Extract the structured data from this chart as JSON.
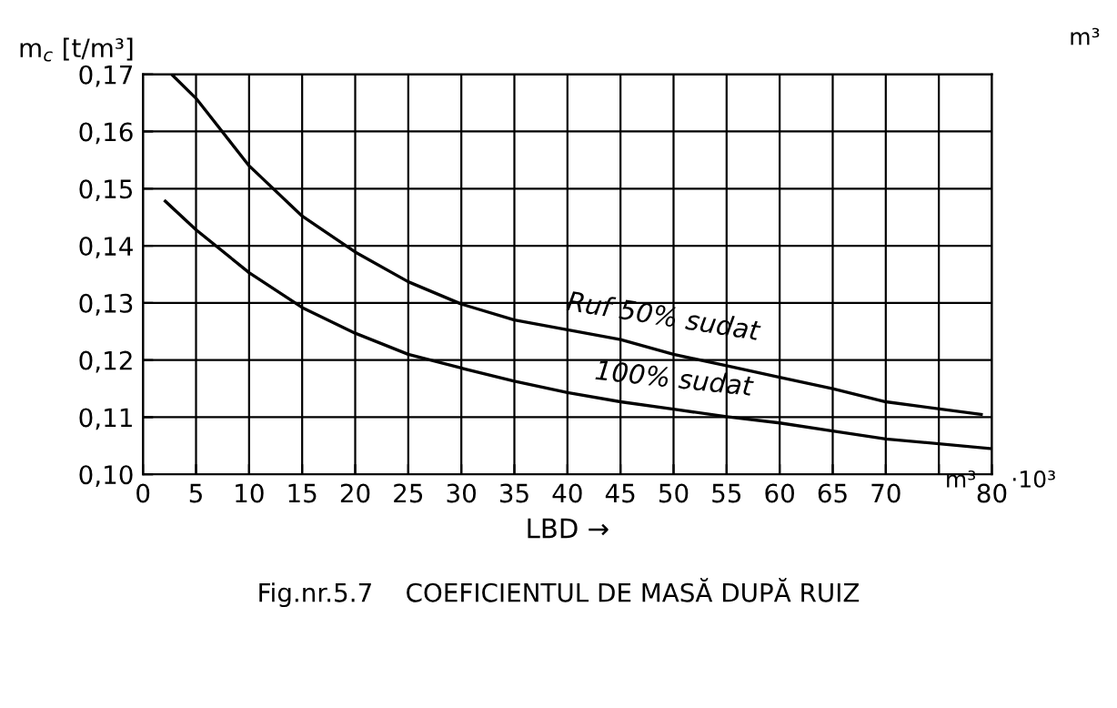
{
  "chart_data": {
    "type": "line",
    "title": "Fig.nr.5.7    COEFICIENTUL DE MASĂ DUPĂ RUIZ",
    "xlabel": "LBD →",
    "ylabel": "m$_{c}$ [t/m³]",
    "annotations": [
      "m³",
      "m³",
      "·10³"
    ],
    "series": [
      {
        "name": "Ruf 50% sudat",
        "color": "#000000",
        "x": [
          2.7,
          5,
          10,
          15,
          20,
          25,
          30,
          35,
          40,
          45,
          50,
          55,
          60,
          65,
          70,
          79
        ],
        "values": [
          0.17,
          0.1658,
          0.154,
          0.1452,
          0.1389,
          0.1337,
          0.1298,
          0.127,
          0.1253,
          0.1236,
          0.121,
          0.119,
          0.117,
          0.115,
          0.1127,
          0.1105
        ]
      },
      {
        "name": "100% sudat",
        "color": "#000000",
        "x": [
          2.1,
          5,
          10,
          15,
          20,
          25,
          30,
          35,
          40,
          45,
          50,
          55,
          60,
          65,
          70,
          80
        ],
        "values": [
          0.1478,
          0.1428,
          0.1353,
          0.1292,
          0.1247,
          0.121,
          0.1186,
          0.1163,
          0.1143,
          0.1127,
          0.1114,
          0.1101,
          0.109,
          0.1076,
          0.1062,
          0.1045
        ]
      }
    ],
    "xlim": [
      0,
      80
    ],
    "xticks": [
      0,
      5,
      10,
      15,
      20,
      25,
      30,
      35,
      40,
      45,
      50,
      55,
      60,
      65,
      70,
      {
        "value": 75,
        "label": null
      },
      80
    ],
    "ylim": [
      0.1,
      0.17
    ],
    "yticks": [
      {
        "value": 0.1,
        "label": "0,10"
      },
      {
        "value": 0.11,
        "label": "0,11"
      },
      {
        "value": 0.12,
        "label": "0,12"
      },
      {
        "value": 0.13,
        "label": "0,13"
      },
      {
        "value": 0.14,
        "label": "0,14"
      },
      {
        "value": 0.15,
        "label": "0,15"
      },
      {
        "value": 0.16,
        "label": "0,16"
      },
      {
        "value": 0.17,
        "label": "0,17"
      }
    ],
    "grid": true,
    "legend": false,
    "marker": "none",
    "line_style": "solid"
  }
}
